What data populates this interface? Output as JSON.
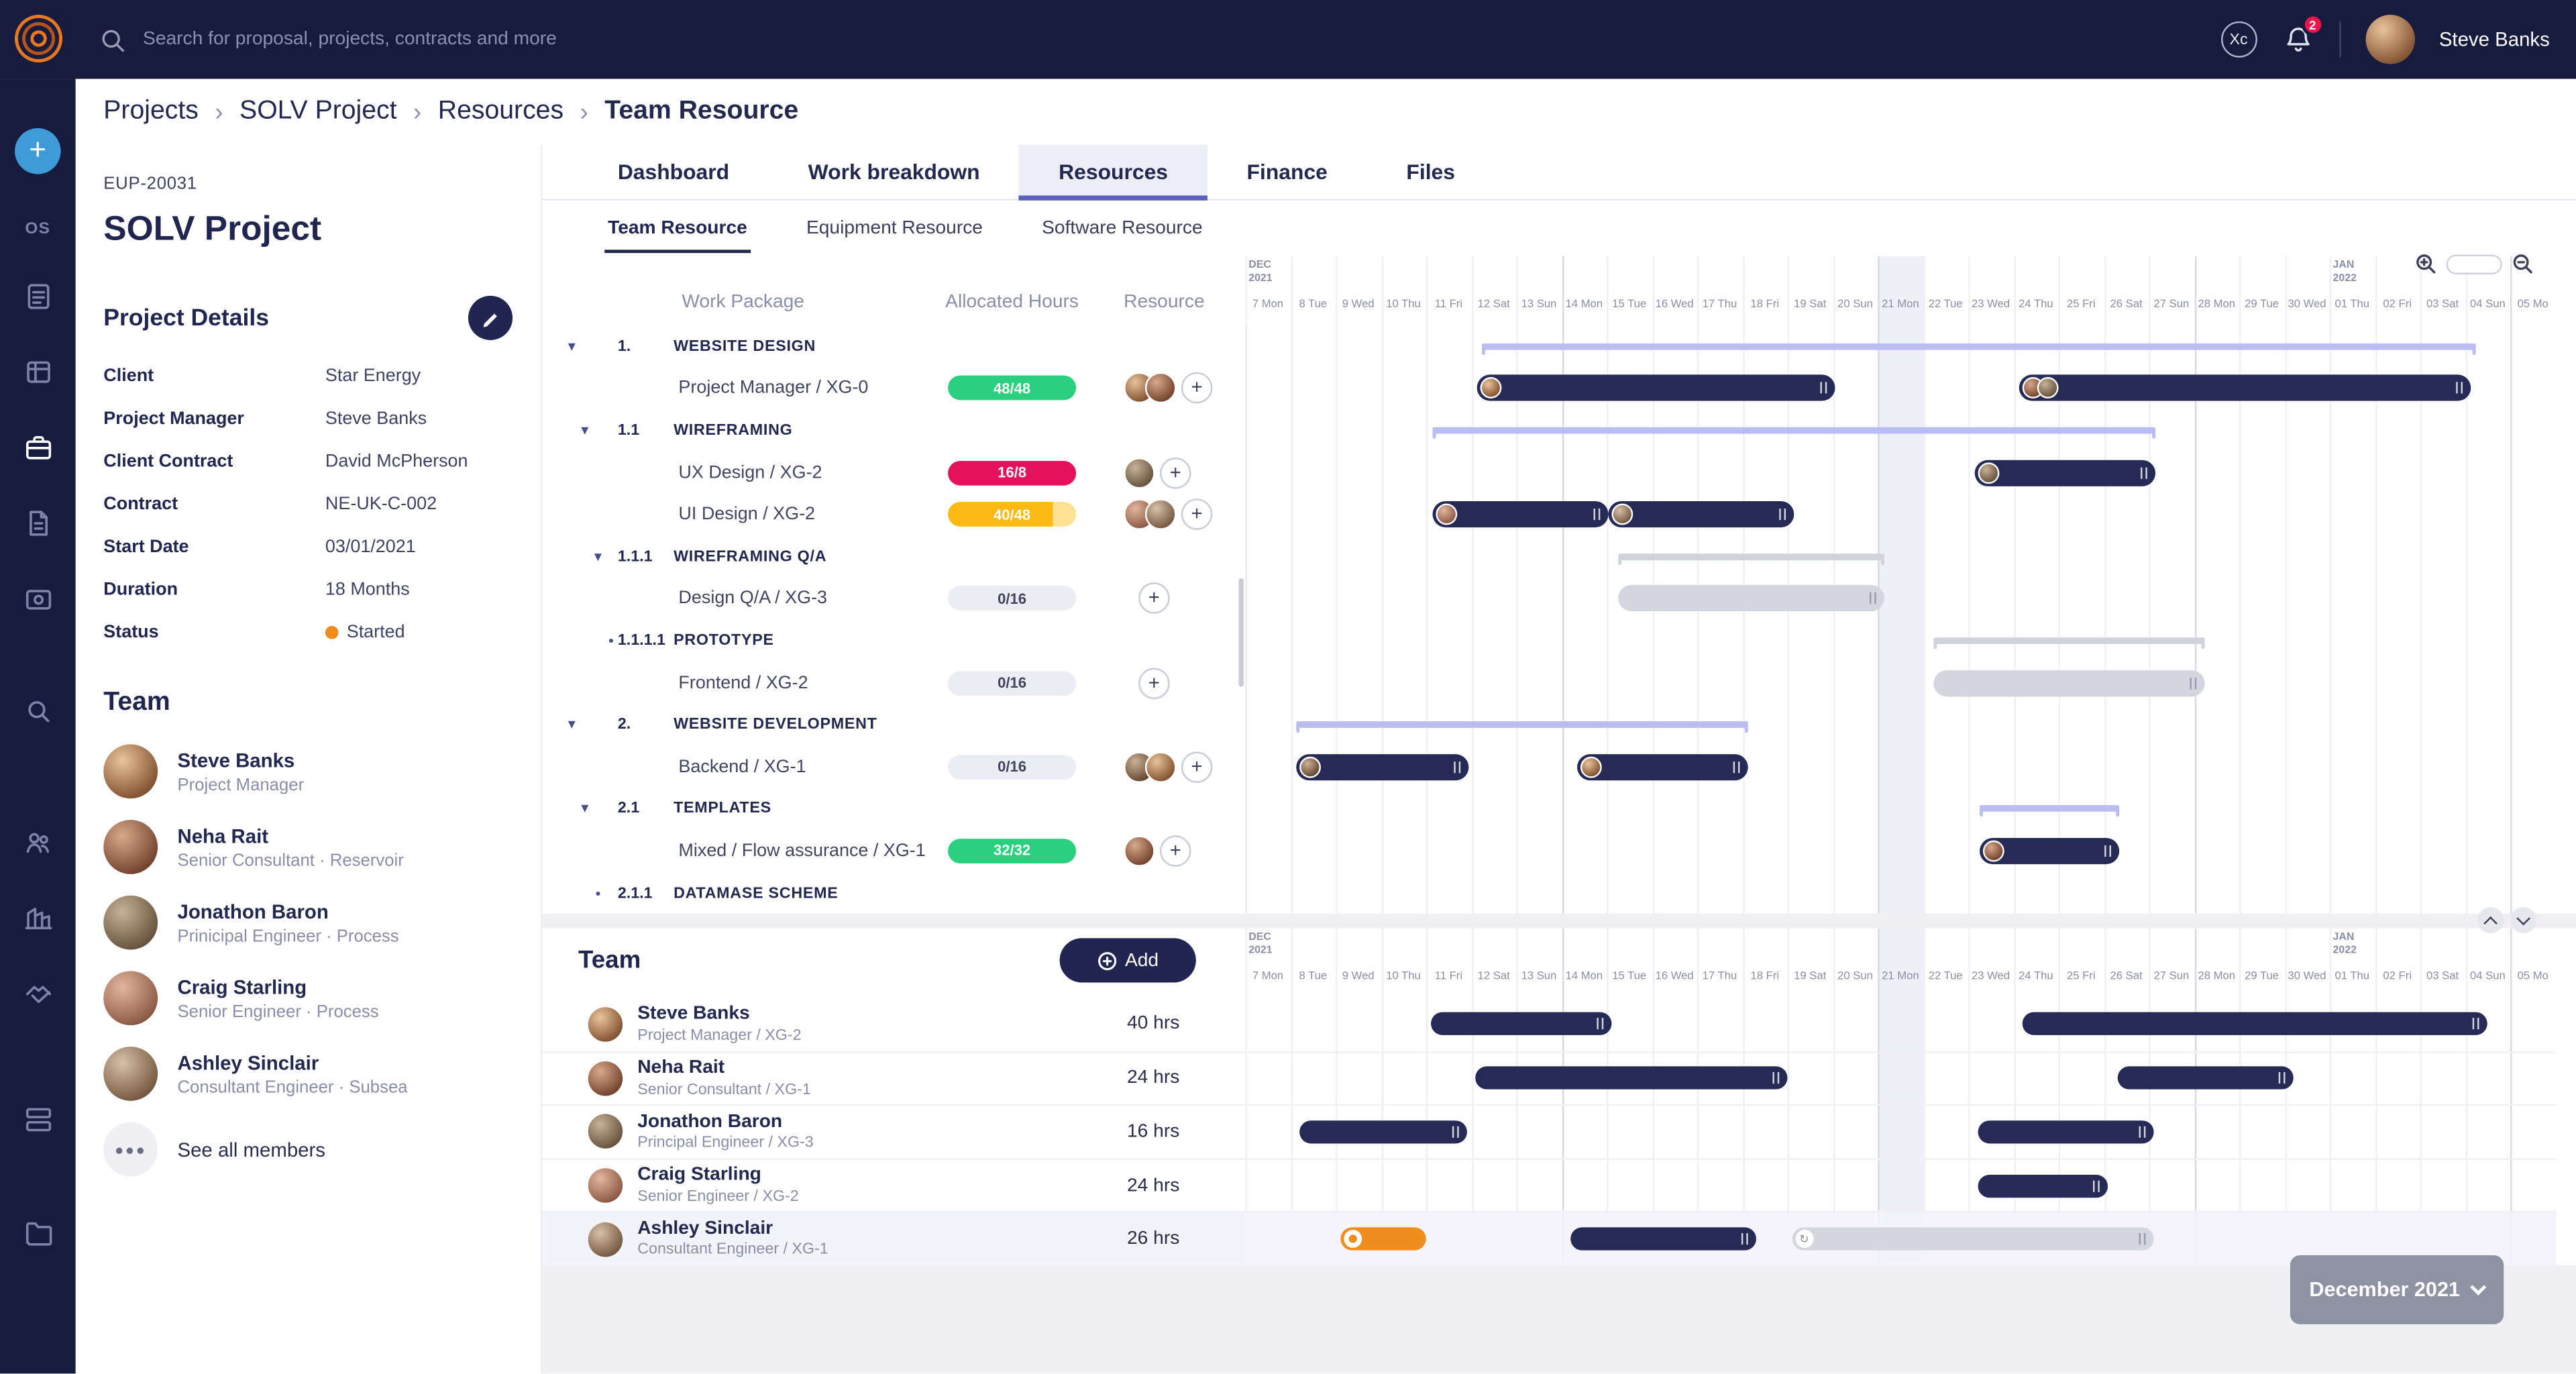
{
  "topbar": {
    "search_placeholder": "Search for proposal, projects, contracts and more",
    "xc_badge": "Xc",
    "notification_count": "2",
    "user_name": "Steve Banks"
  },
  "sidebar": {
    "os_label": "OS",
    "items": [
      {
        "icon": "notes-icon"
      },
      {
        "icon": "ledger-icon"
      },
      {
        "icon": "projects-icon",
        "active": true
      },
      {
        "icon": "invoice-icon"
      },
      {
        "icon": "finance-icon"
      },
      {
        "icon": "recruitment-icon"
      },
      {
        "icon": "team-icon"
      },
      {
        "icon": "org-icon"
      },
      {
        "icon": "partners-icon"
      },
      {
        "icon": "cards-icon"
      },
      {
        "icon": "files-icon"
      }
    ]
  },
  "breadcrumb": {
    "items": [
      "Projects",
      "SOLV Project",
      "Resources",
      "Team Resource"
    ],
    "separator": "›"
  },
  "project_panel": {
    "code": "EUP-20031",
    "title": "SOLV Project",
    "details_heading": "Project Details",
    "details": [
      {
        "label": "Client",
        "value": "Star Energy"
      },
      {
        "label": "Project Manager",
        "value": "Steve Banks"
      },
      {
        "label": "Client Contract",
        "value": "David McPherson"
      },
      {
        "label": "Contract",
        "value": "NE-UK-C-002"
      },
      {
        "label": "Start Date",
        "value": "03/01/2021"
      },
      {
        "label": "Duration",
        "value": "18 Months"
      },
      {
        "label": "Status",
        "value": "Started",
        "status_color": "#f08c1e"
      }
    ],
    "team_heading": "Team",
    "members": [
      {
        "name": "Steve Banks",
        "role": "Project Manager"
      },
      {
        "name": "Neha Rait",
        "role": "Senior Consultant · Reservoir"
      },
      {
        "name": "Jonathon Baron",
        "role": "Prinicipal Engineer · Process"
      },
      {
        "name": "Craig Starling",
        "role": "Senior Engineer · Process"
      },
      {
        "name": "Ashley Sinclair",
        "role": "Consultant Engineer · Subsea"
      }
    ],
    "see_all_label": "See all members"
  },
  "tabs": [
    {
      "label": "Dashboard"
    },
    {
      "label": "Work breakdown"
    },
    {
      "label": "Resources",
      "active": true
    },
    {
      "label": "Finance"
    },
    {
      "label": "Files"
    }
  ],
  "subtabs": [
    {
      "label": "Team Resource",
      "active": true
    },
    {
      "label": "Equipment Resource"
    },
    {
      "label": "Software Resource"
    }
  ],
  "gantt": {
    "day_width": 27.5,
    "highlight_day": 14,
    "columns": {
      "work_package": "Work Package",
      "allocated_hours": "Allocated Hours",
      "resource": "Resource"
    },
    "months": [
      {
        "line1": "DEC",
        "line2": "2021",
        "day": 0
      },
      {
        "line1": "JAN",
        "line2": "2022",
        "day": 24
      }
    ],
    "days": [
      "7 Mon",
      "8 Tue",
      "9 Wed",
      "10 Thu",
      "11 Fri",
      "12 Sat",
      "13 Sun",
      "14 Mon",
      "15 Tue",
      "16 Wed",
      "17 Thu",
      "18 Fri",
      "19 Sat",
      "20 Sun",
      "21 Mon",
      "22 Tue",
      "23 Wed",
      "24 Thu",
      "25 Fri",
      "26 Sat",
      "27 Sun",
      "28 Mon",
      "29 Tue",
      "30 Wed",
      "01 Thu",
      "02 Fri",
      "03 Sat",
      "04 Sun",
      "05 Mo"
    ],
    "rows": [
      {
        "kind": "group",
        "level": 1,
        "wbs": "1.",
        "label": "WEBSITE DESIGN",
        "marker": "arrow",
        "bars": [
          {
            "type": "summary",
            "s": 5.2,
            "e": 27.2
          }
        ]
      },
      {
        "kind": "task",
        "label": "Project Manager / XG-0",
        "hours": "48/48",
        "badge": "green",
        "avatars": 2,
        "avi": 0,
        "bars": [
          {
            "type": "dark",
            "s": 5.1,
            "e": 13,
            "av": 1,
            "avc": 0
          },
          {
            "type": "dark",
            "s": 17.1,
            "e": 27.1,
            "av": 2,
            "avc": 1
          }
        ]
      },
      {
        "kind": "group",
        "level": 2,
        "wbs": "1.1",
        "label": "WIREFRAMING",
        "marker": "arrow",
        "bars": [
          {
            "type": "summary",
            "s": 4.1,
            "e": 20.1
          }
        ]
      },
      {
        "kind": "task",
        "label": "UX Design / XG-2",
        "hours": "16/8",
        "badge": "red",
        "avatars": 1,
        "avi": 2,
        "bars": [
          {
            "type": "dark",
            "s": 16.1,
            "e": 20.1,
            "av": 1,
            "avc": 2
          }
        ]
      },
      {
        "kind": "task",
        "label": "UI Design / XG-2",
        "hours": "40/48",
        "badge": "yellow",
        "pct": 82,
        "avatars": 2,
        "avi": 3,
        "bars": [
          {
            "type": "dark",
            "s": 4.1,
            "e": 8,
            "av": 1,
            "avc": 3
          },
          {
            "type": "dark",
            "s": 8,
            "e": 12.1,
            "av": 1,
            "avc": 4
          }
        ]
      },
      {
        "kind": "group",
        "level": 3,
        "wbs": "1.1.1",
        "label": "WIREFRAMING Q/A",
        "marker": "arrow",
        "bars": [
          {
            "type": "summaryGray",
            "s": 8.2,
            "e": 14.1
          }
        ]
      },
      {
        "kind": "task",
        "label": "Design Q/A / XG-3",
        "hours": "0/16",
        "badge": "gray",
        "avatars": 0,
        "bars": [
          {
            "type": "light",
            "s": 8.2,
            "e": 14.1
          }
        ]
      },
      {
        "kind": "group",
        "level": 4,
        "wbs": "1.1.1.1",
        "label": "PROTOTYPE",
        "marker": "dot",
        "bars": [
          {
            "type": "summaryGray",
            "s": 15.2,
            "e": 21.2
          }
        ]
      },
      {
        "kind": "task",
        "label": "Frontend / XG-2",
        "hours": "0/16",
        "badge": "gray",
        "avatars": 0,
        "bars": [
          {
            "type": "light",
            "s": 15.2,
            "e": 21.2
          }
        ]
      },
      {
        "kind": "group",
        "level": 1,
        "wbs": "2.",
        "label": "WEBSITE DEVELOPMENT",
        "marker": "arrow",
        "bars": [
          {
            "type": "summary",
            "s": 1.1,
            "e": 11.1
          }
        ]
      },
      {
        "kind": "task",
        "label": "Backend / XG-1",
        "hours": "0/16",
        "badge": "gray",
        "avatars": 2,
        "avi": 5,
        "bars": [
          {
            "type": "dark",
            "s": 1.1,
            "e": 4.9,
            "av": 1,
            "avc": 5
          },
          {
            "type": "dark",
            "s": 7.3,
            "e": 11.1,
            "av": 1,
            "avc": 0
          }
        ]
      },
      {
        "kind": "group",
        "level": 2,
        "wbs": "2.1",
        "label": "TEMPLATES",
        "marker": "arrow",
        "bars": [
          {
            "type": "summary",
            "s": 16.2,
            "e": 19.3
          }
        ]
      },
      {
        "kind": "task",
        "label": "Mixed / Flow assurance / XG-1",
        "hours": "32/32",
        "badge": "green",
        "avatars": 1,
        "avi": 1,
        "bars": [
          {
            "type": "dark",
            "s": 16.2,
            "e": 19.3,
            "av": 1,
            "avc": 1
          }
        ]
      },
      {
        "kind": "group",
        "level": 3,
        "wbs": "2.1.1",
        "label": "DATAMASE SCHEME",
        "marker": "dot",
        "bars": []
      }
    ]
  },
  "team_section": {
    "heading": "Team",
    "add_label": "Add",
    "rows": [
      {
        "name": "Steve Banks",
        "role": "Project Manager / XG-2",
        "hours": "40 hrs",
        "bars": [
          {
            "type": "dark",
            "s": 4.1,
            "e": 8.1
          },
          {
            "type": "dark",
            "s": 17.2,
            "e": 27.5
          }
        ]
      },
      {
        "name": "Neha Rait",
        "role": "Senior Consultant / XG-1",
        "hours": "24 hrs",
        "bars": [
          {
            "type": "dark",
            "s": 5.1,
            "e": 12
          },
          {
            "type": "dark",
            "s": 19.3,
            "e": 23.2
          }
        ]
      },
      {
        "name": "Jonathon Baron",
        "role": "Principal Engineer / XG-3",
        "hours": "16 hrs",
        "bars": [
          {
            "type": "dark",
            "s": 1.2,
            "e": 4.9
          },
          {
            "type": "dark",
            "s": 16.2,
            "e": 20.1
          }
        ]
      },
      {
        "name": "Craig Starling",
        "role": "Senior Engineer / XG-2",
        "hours": "24 hrs",
        "bars": [
          {
            "type": "dark",
            "s": 16.2,
            "e": 19.1
          }
        ]
      },
      {
        "name": "Ashley Sinclair",
        "role": "Consultant Engineer / XG-1",
        "hours": "26 hrs",
        "highlight": true,
        "bars": [
          {
            "type": "orange",
            "s": 2.1,
            "e": 4,
            "icon": "status"
          },
          {
            "type": "dark",
            "s": 7.2,
            "e": 11.3
          },
          {
            "type": "light",
            "s": 12.1,
            "e": 20.1,
            "icon": "sync"
          }
        ]
      }
    ]
  },
  "footer": {
    "month_selector": "December 2021"
  },
  "colors": {
    "navy": "#171c3f",
    "ink": "#20264f",
    "accent_purple": "#5a5fc0",
    "bar_dark": "#262b55",
    "summary_purple": "#b9bdf2",
    "bar_gray": "#d3d5df",
    "green": "#2bd07e",
    "red": "#e4115c",
    "yellow": "#fdb913",
    "orange": "#ef8d1f"
  }
}
